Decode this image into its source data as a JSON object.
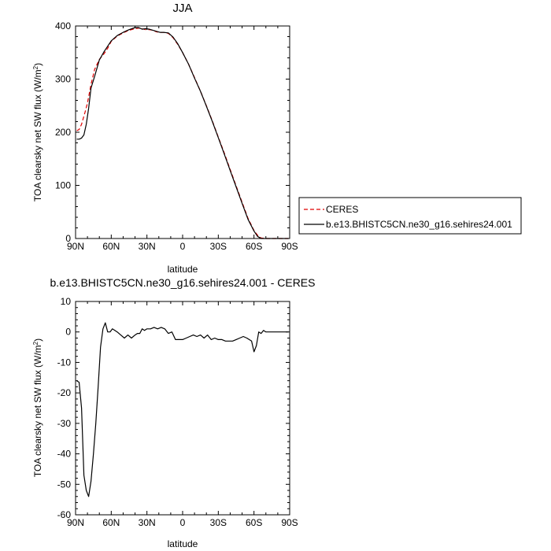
{
  "chart_data": [
    {
      "type": "line",
      "title": "JJA",
      "xlabel": "latitude",
      "ylabel": "TOA clearsky net SW flux (W/m",
      "ylabel_sup": "2",
      "ylabel_close": ")",
      "xlim": [
        90,
        -90
      ],
      "ylim": [
        0,
        400
      ],
      "x_ticks": [
        90,
        60,
        30,
        0,
        -30,
        -60,
        -90
      ],
      "x_tick_labels": [
        "90N",
        "60N",
        "30N",
        "0",
        "30S",
        "60S",
        "90S"
      ],
      "y_ticks": [
        0,
        100,
        200,
        300,
        400
      ],
      "y_tick_labels": [
        "0",
        "100",
        "200",
        "300",
        "400"
      ],
      "legend": {
        "placement": "right"
      },
      "series": [
        {
          "name": "CERES",
          "color": "#e00000",
          "dash": "dashed",
          "x": [
            89,
            87,
            85,
            82,
            80,
            77,
            74,
            70,
            66,
            63,
            60,
            55,
            50,
            45,
            40,
            37,
            34,
            31,
            28,
            25,
            22,
            19,
            16,
            12,
            8,
            4,
            0,
            -5,
            -10,
            -15,
            -20,
            -25,
            -30,
            -35,
            -40,
            -45,
            -50,
            -55,
            -60,
            -63,
            -66,
            -70,
            -75,
            -80,
            -85,
            -89
          ],
          "y": [
            203,
            205,
            215,
            238,
            255,
            290,
            318,
            337,
            348,
            358,
            371,
            381,
            387,
            392,
            395,
            396,
            395,
            393,
            393,
            392,
            389,
            388,
            388,
            386,
            378,
            365,
            350,
            328,
            303,
            277,
            250,
            221,
            191,
            161,
            130,
            99,
            68,
            38,
            15,
            6,
            1,
            0,
            0,
            0,
            0,
            0
          ]
        },
        {
          "name": "b.e13.BHISTC5CN.ne30_g16.sehires24.001",
          "color": "#000000",
          "dash": "solid",
          "x": [
            89,
            87,
            85,
            83,
            81,
            79,
            77,
            74,
            70,
            66,
            63,
            60,
            55,
            50,
            45,
            40,
            37,
            34,
            31,
            28,
            25,
            22,
            19,
            16,
            12,
            8,
            4,
            0,
            -5,
            -10,
            -15,
            -20,
            -25,
            -30,
            -35,
            -40,
            -45,
            -50,
            -55,
            -60,
            -63,
            -66,
            -70,
            -75,
            -80,
            -85,
            -89
          ],
          "y": [
            187,
            187,
            189,
            195,
            215,
            245,
            283,
            305,
            336,
            352,
            362,
            372,
            382,
            388,
            393,
            397,
            397,
            394,
            395,
            394,
            392,
            390,
            388,
            388,
            387,
            379,
            366,
            350,
            328,
            302,
            277,
            249,
            220,
            190,
            159,
            128,
            97,
            66,
            36,
            14,
            4,
            0,
            0,
            0,
            0,
            0,
            0
          ]
        }
      ]
    },
    {
      "type": "line",
      "title": "b.e13.BHISTC5CN.ne30_g16.sehires24.001 - CERES",
      "xlabel": "latitude",
      "ylabel": "TOA clearsky net SW flux (W/m",
      "ylabel_sup": "2",
      "ylabel_close": ")",
      "xlim": [
        90,
        -90
      ],
      "ylim": [
        -60,
        10
      ],
      "x_ticks": [
        90,
        60,
        30,
        0,
        -30,
        -60,
        -90
      ],
      "x_tick_labels": [
        "90N",
        "60N",
        "30N",
        "0",
        "30S",
        "60S",
        "90S"
      ],
      "y_ticks": [
        -60,
        -50,
        -40,
        -30,
        -20,
        -10,
        0,
        10
      ],
      "y_tick_labels": [
        "-60",
        "-50",
        "-40",
        "-30",
        "-20",
        "-10",
        "0",
        "10"
      ],
      "series": [
        {
          "color": "#000000",
          "dash": "solid",
          "x": [
            89,
            87,
            85,
            83,
            81,
            79,
            77,
            75,
            73,
            71,
            69,
            67,
            65,
            63,
            61,
            59,
            57,
            55,
            52,
            49,
            46,
            43,
            40,
            38,
            36,
            34,
            32,
            30,
            27,
            24,
            21,
            18,
            15,
            12,
            9,
            6,
            3,
            0,
            -3,
            -6,
            -9,
            -12,
            -15,
            -18,
            -21,
            -24,
            -27,
            -30,
            -33,
            -36,
            -39,
            -42,
            -45,
            -48,
            -51,
            -54,
            -56,
            -58,
            -60,
            -62,
            -64,
            -66,
            -68,
            -70,
            -72,
            -75,
            -80,
            -85,
            -89
          ],
          "y": [
            -16,
            -16.5,
            -25,
            -47,
            -52,
            -54,
            -49,
            -40,
            -30,
            -18,
            -5,
            1,
            3,
            0,
            0,
            1,
            0.5,
            0,
            -1,
            -2,
            -1,
            -2,
            -1,
            -0.5,
            -0.5,
            1,
            0.5,
            1,
            1,
            1.5,
            1,
            1.5,
            1,
            -0.5,
            0,
            -2.5,
            -2.5,
            -2.5,
            -2,
            -1.5,
            -1,
            -1.5,
            -1,
            -2,
            -1,
            -2.5,
            -2,
            -2.5,
            -2.5,
            -3,
            -3,
            -3,
            -2.5,
            -2,
            -1.5,
            -2,
            -2.5,
            -3,
            -6.5,
            -4.5,
            0,
            -0.5,
            0.5,
            0,
            0,
            0,
            0,
            0,
            0
          ]
        }
      ]
    }
  ]
}
